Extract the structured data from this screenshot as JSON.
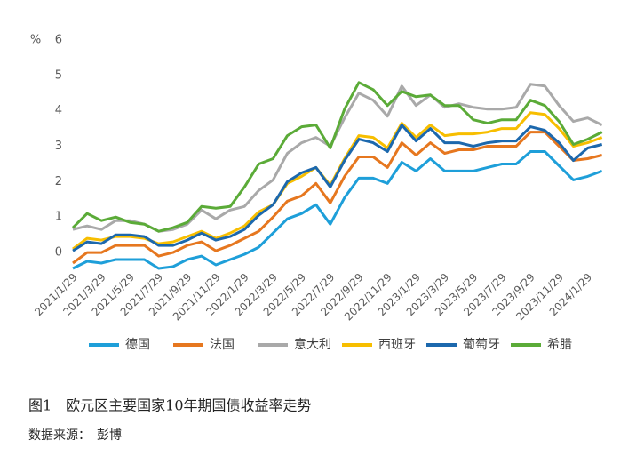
{
  "chart_data": {
    "type": "line",
    "y_label": "%",
    "categories": [
      "2021/1/29",
      null,
      "2021/3/29",
      null,
      "2021/5/29",
      null,
      "2021/7/29",
      null,
      "2021/9/29",
      null,
      "2021/11/29",
      null,
      "2022/1/29",
      null,
      "2022/3/29",
      null,
      "2022/5/29",
      null,
      "2022/7/29",
      null,
      "2022/9/29",
      null,
      "2022/11/29",
      null,
      "2023/1/29",
      null,
      "2023/3/29",
      null,
      "2023/5/29",
      null,
      "2023/7/29",
      null,
      "2023/9/29",
      null,
      "2023/11/29",
      null,
      "2024/1/29",
      null
    ],
    "ylim": [
      -0.5,
      6
    ],
    "yticks": [
      0,
      1,
      2,
      3,
      4,
      5,
      6
    ],
    "grid": false,
    "legend": "bottom",
    "series": [
      {
        "name": "德国",
        "color": "#1e9fd9",
        "values": [
          -0.45,
          -0.25,
          -0.3,
          -0.2,
          -0.2,
          -0.2,
          -0.45,
          -0.4,
          -0.2,
          -0.1,
          -0.35,
          -0.2,
          -0.05,
          0.15,
          0.55,
          0.95,
          1.1,
          1.35,
          0.8,
          1.55,
          2.1,
          2.1,
          1.95,
          2.55,
          2.3,
          2.65,
          2.3,
          2.3,
          2.3,
          2.4,
          2.5,
          2.5,
          2.85,
          2.85,
          2.45,
          2.05,
          2.15,
          2.3
        ]
      },
      {
        "name": "法国",
        "color": "#e6771f",
        "values": [
          -0.3,
          0.0,
          0.0,
          0.2,
          0.2,
          0.2,
          -0.1,
          0.0,
          0.2,
          0.3,
          0.05,
          0.2,
          0.4,
          0.6,
          1.0,
          1.45,
          1.6,
          1.95,
          1.4,
          2.15,
          2.7,
          2.7,
          2.4,
          3.1,
          2.75,
          3.1,
          2.8,
          2.9,
          2.9,
          3.0,
          3.0,
          3.0,
          3.4,
          3.4,
          3.0,
          2.6,
          2.65,
          2.75
        ]
      },
      {
        "name": "意大利",
        "color": "#a9a9a9",
        "values": [
          0.65,
          0.75,
          0.65,
          0.9,
          0.9,
          0.8,
          0.6,
          0.65,
          0.8,
          1.2,
          0.95,
          1.2,
          1.3,
          1.75,
          2.05,
          2.8,
          3.1,
          3.25,
          3.0,
          3.8,
          4.5,
          4.3,
          3.85,
          4.7,
          4.15,
          4.45,
          4.1,
          4.2,
          4.1,
          4.05,
          4.05,
          4.1,
          4.75,
          4.7,
          4.15,
          3.7,
          3.8,
          3.6
        ]
      },
      {
        "name": "西班牙",
        "color": "#f7be00",
        "values": [
          0.1,
          0.4,
          0.35,
          0.45,
          0.45,
          0.4,
          0.25,
          0.3,
          0.45,
          0.6,
          0.4,
          0.55,
          0.75,
          1.15,
          1.35,
          1.95,
          2.15,
          2.4,
          1.9,
          2.65,
          3.3,
          3.25,
          2.95,
          3.65,
          3.25,
          3.6,
          3.3,
          3.35,
          3.35,
          3.4,
          3.5,
          3.5,
          3.95,
          3.9,
          3.5,
          3.0,
          3.1,
          3.25
        ]
      },
      {
        "name": "葡萄牙",
        "color": "#1c68ad",
        "values": [
          0.05,
          0.3,
          0.25,
          0.5,
          0.5,
          0.45,
          0.2,
          0.2,
          0.35,
          0.55,
          0.35,
          0.45,
          0.65,
          1.05,
          1.35,
          2.0,
          2.25,
          2.4,
          1.85,
          2.6,
          3.2,
          3.1,
          2.85,
          3.6,
          3.15,
          3.5,
          3.1,
          3.1,
          3.0,
          3.1,
          3.15,
          3.15,
          3.55,
          3.45,
          3.1,
          2.6,
          2.95,
          3.05
        ]
      },
      {
        "name": "希腊",
        "color": "#5bab38",
        "values": [
          0.7,
          1.1,
          0.9,
          1.0,
          0.85,
          0.8,
          0.6,
          0.7,
          0.85,
          1.3,
          1.25,
          1.3,
          1.85,
          2.5,
          2.65,
          3.3,
          3.55,
          3.6,
          2.95,
          4.05,
          4.8,
          4.6,
          4.15,
          4.55,
          4.4,
          4.45,
          4.15,
          4.15,
          3.75,
          3.65,
          3.75,
          3.75,
          4.3,
          4.15,
          3.7,
          3.05,
          3.2,
          3.4
        ]
      }
    ]
  },
  "caption": "图1　欧元区主要国家10年期国债收益率走势",
  "source": "数据来源：　彭博"
}
